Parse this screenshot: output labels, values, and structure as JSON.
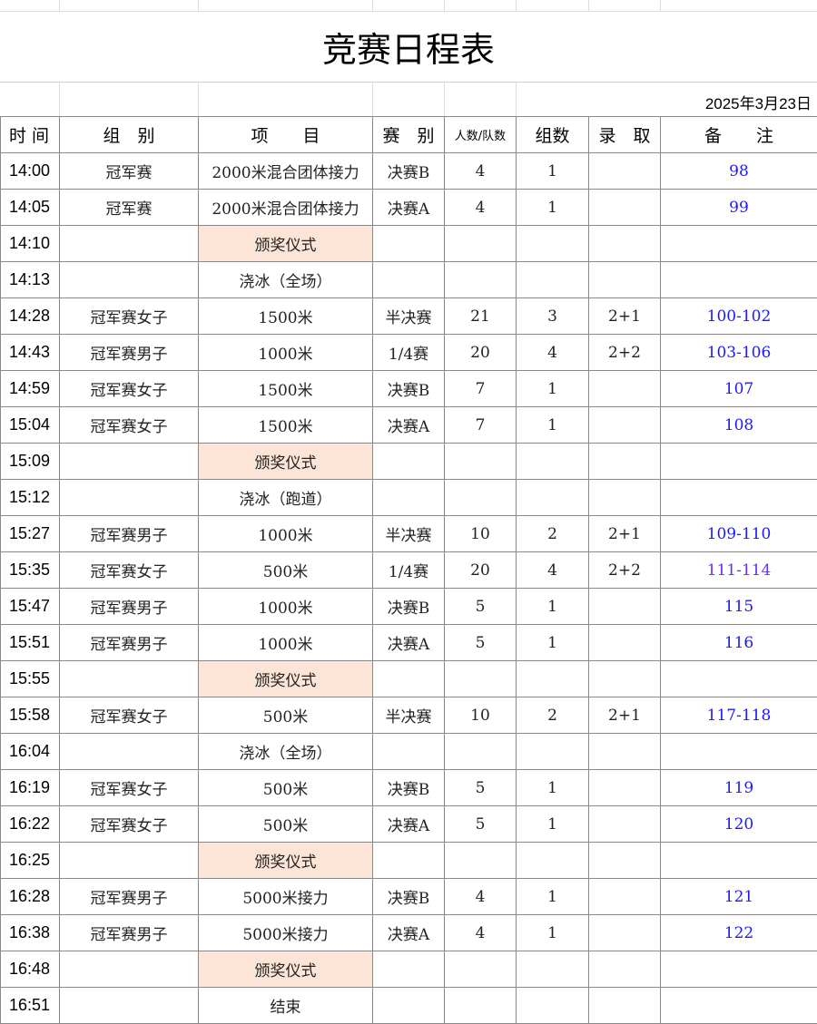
{
  "title": "竞赛日程表",
  "date": "2025年3月23日",
  "headers": [
    "时 间",
    "组　别",
    "项　　目",
    "赛　别",
    "人数/队数",
    "组数",
    "录　取",
    "备　　注"
  ],
  "colors": {
    "note": "#1a1aff",
    "highlight": "#fce4d6"
  },
  "rows": [
    [
      "14:00",
      "冠军赛",
      "2000米混合团体接力",
      "决赛B",
      "4",
      "1",
      "",
      "98",
      false
    ],
    [
      "14:05",
      "冠军赛",
      "2000米混合团体接力",
      "决赛A",
      "4",
      "1",
      "",
      "99",
      false
    ],
    [
      "14:10",
      "",
      "颁奖仪式",
      "",
      "",
      "",
      "",
      "",
      true
    ],
    [
      "14:13",
      "",
      "浇冰（全场）",
      "",
      "",
      "",
      "",
      "",
      false
    ],
    [
      "14:28",
      "冠军赛女子",
      "1500米",
      "半决赛",
      "21",
      "3",
      "2+1",
      "100-102",
      false
    ],
    [
      "14:43",
      "冠军赛男子",
      "1000米",
      "1/4赛",
      "20",
      "4",
      "2+2",
      "103-106",
      false
    ],
    [
      "14:59",
      "冠军赛女子",
      "1500米",
      "决赛B",
      "7",
      "1",
      "",
      "107",
      false
    ],
    [
      "15:04",
      "冠军赛女子",
      "1500米",
      "决赛A",
      "7",
      "1",
      "",
      "108",
      false
    ],
    [
      "15:09",
      "",
      "颁奖仪式",
      "",
      "",
      "",
      "",
      "",
      true
    ],
    [
      "15:12",
      "",
      "浇冰（跑道）",
      "",
      "",
      "",
      "",
      "",
      false
    ],
    [
      "15:27",
      "冠军赛男子",
      "1000米",
      "半决赛",
      "10",
      "2",
      "2+1",
      "109-110",
      false
    ],
    [
      "15:35",
      "冠军赛女子",
      "500米",
      "1/4赛",
      "20",
      "4",
      "2+2",
      "111-114",
      false
    ],
    [
      "15:47",
      "冠军赛男子",
      "1000米",
      "决赛B",
      "5",
      "1",
      "",
      "115",
      false
    ],
    [
      "15:51",
      "冠军赛男子",
      "1000米",
      "决赛A",
      "5",
      "1",
      "",
      "116",
      false
    ],
    [
      "15:55",
      "",
      "颁奖仪式",
      "",
      "",
      "",
      "",
      "",
      true
    ],
    [
      "15:58",
      "冠军赛女子",
      "500米",
      "半决赛",
      "10",
      "2",
      "2+1",
      "117-118",
      false
    ],
    [
      "16:04",
      "",
      "浇冰（全场）",
      "",
      "",
      "",
      "",
      "",
      false
    ],
    [
      "16:19",
      "冠军赛女子",
      "500米",
      "决赛B",
      "5",
      "1",
      "",
      "119",
      false
    ],
    [
      "16:22",
      "冠军赛女子",
      "500米",
      "决赛A",
      "5",
      "1",
      "",
      "120",
      false
    ],
    [
      "16:25",
      "",
      "颁奖仪式",
      "",
      "",
      "",
      "",
      "",
      true
    ],
    [
      "16:28",
      "冠军赛男子",
      "5000米接力",
      "决赛B",
      "4",
      "1",
      "",
      "121",
      false
    ],
    [
      "16:38",
      "冠军赛男子",
      "5000米接力",
      "决赛A",
      "4",
      "1",
      "",
      "122",
      false
    ],
    [
      "16:48",
      "",
      "颁奖仪式",
      "",
      "",
      "",
      "",
      "",
      true
    ],
    [
      "16:51",
      "",
      "结束",
      "",
      "",
      "",
      "",
      "",
      false
    ]
  ]
}
